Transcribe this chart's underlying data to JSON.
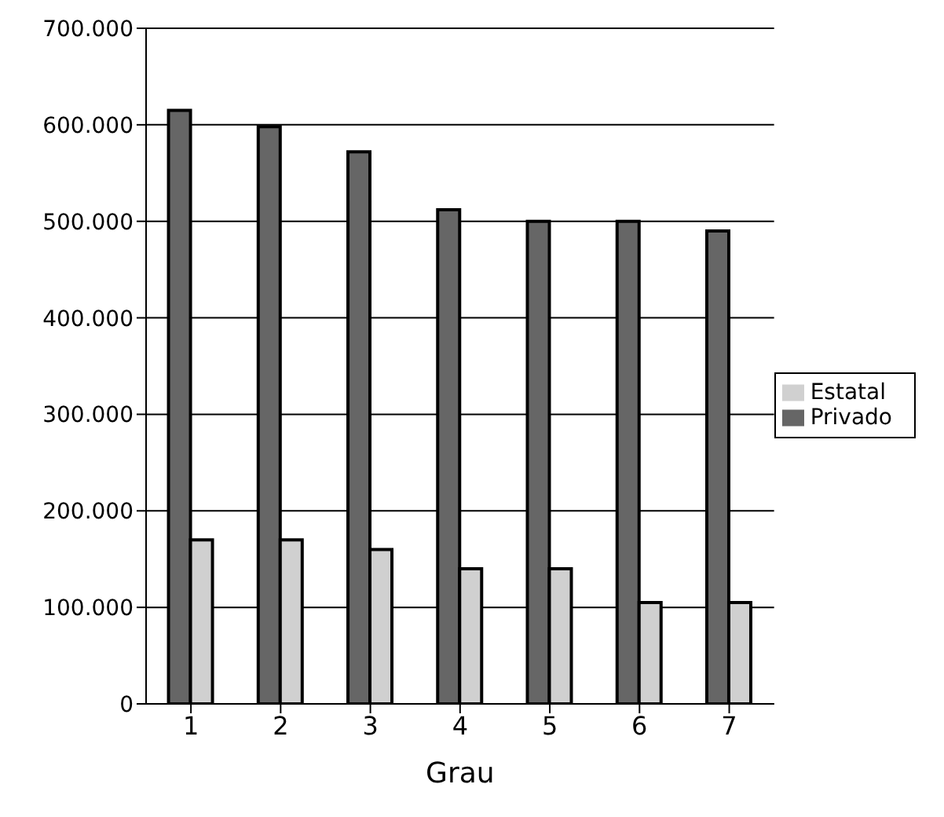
{
  "chart_data": {
    "type": "bar",
    "xlabel": "Grau",
    "categories": [
      "1",
      "2",
      "3",
      "4",
      "5",
      "6",
      "7"
    ],
    "series": [
      {
        "name": "Privado",
        "color": "#666666",
        "values": [
          615000,
          598000,
          572000,
          512000,
          500000,
          500000,
          490000
        ]
      },
      {
        "name": "Estatal",
        "color": "#d0d0d0",
        "values": [
          170000,
          170000,
          160000,
          140000,
          140000,
          105000,
          105000
        ]
      }
    ],
    "ylim": [
      0,
      700000
    ],
    "yticks": [
      {
        "value": 0,
        "label": "0"
      },
      {
        "value": 100000,
        "label": "100.000"
      },
      {
        "value": 200000,
        "label": "200.000"
      },
      {
        "value": 300000,
        "label": "300.000"
      },
      {
        "value": 400000,
        "label": "400.000"
      },
      {
        "value": 500000,
        "label": "500.000"
      },
      {
        "value": 600000,
        "label": "600.000"
      },
      {
        "value": 700000,
        "label": "700.000"
      }
    ],
    "grid": "y",
    "legend": "right"
  }
}
